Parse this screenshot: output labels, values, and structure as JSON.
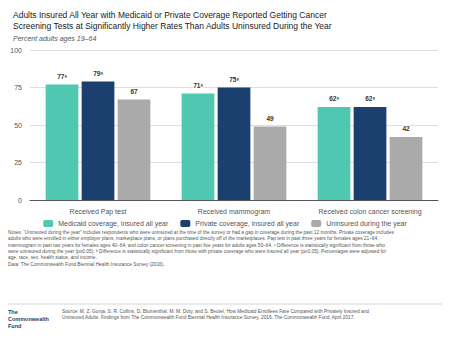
{
  "chart_data": {
    "type": "bar",
    "title": "Adults Insured All Year with Medicaid or Private Coverage Reported Getting Cancer\nScreening Tests at Significantly Higher Rates Than Adults Uninsured During the Year",
    "subtitle": "Percent adults ages 19–64",
    "categories": [
      "Received Pap test",
      "Received mammogram",
      "Received colon cancer screening"
    ],
    "series": [
      {
        "name": "Medicaid coverage, insured all year",
        "color": "#4ec8b0",
        "values": [
          77,
          71,
          62
        ],
        "value_labels": [
          "77ᵃ",
          "71ᵃ",
          "62ᵃ"
        ]
      },
      {
        "name": "Private coverage, insured all year",
        "color": "#1b3f6e",
        "values": [
          79,
          75,
          62
        ],
        "value_labels": [
          "79ᵃ",
          "75ᵃ",
          "62ᵃ"
        ]
      },
      {
        "name": "Uninsured during the year",
        "color": "#aaaaaa",
        "values": [
          67,
          49,
          42
        ]
      }
    ],
    "ylim": [
      0,
      100
    ],
    "yticks": [
      0,
      25,
      50,
      75,
      100
    ],
    "grid": true,
    "data_labels": true,
    "legend": "bottom",
    "notes": "Notes: “Uninsured during the year” includes respondents who were uninsured at the time of the survey or had a gap in coverage during the past 12 months. Private coverage includes\nadults who were enrolled in either employer plans, marketplace plans, or plans purchased directly off of the marketplaces. Pap test in past three years for females ages 21–64;\nmammogram in past two years for females ages 40–64; and colon cancer screening in past five years for adults ages 50–64. ᵃ Difference is statistically significant from those who\nwere uninsured during the year (p≤0.05). ᵇ Difference is statistically significant from those with private coverage who were insured all year (p≤0.05). Percentages were adjusted for\nage, race, sex, health status, and income.\nData: The Commonwealth Fund Biennial Health Insurance Survey (2016).",
    "source": "Source: M. Z. Gunja, S. R. Collins, D. Blumenthal, M. M. Doty, and S. Beutel, How Medicaid Enrollees Fare Compared with Privately Insured and\nUninsured Adults: Findings from The Commonwealth Fund Biennial Health Insurance Survey, 2016. The Commonwealth Fund, April 2017.",
    "annotations": [
      "The\nCommonwealth\nFund"
    ]
  }
}
